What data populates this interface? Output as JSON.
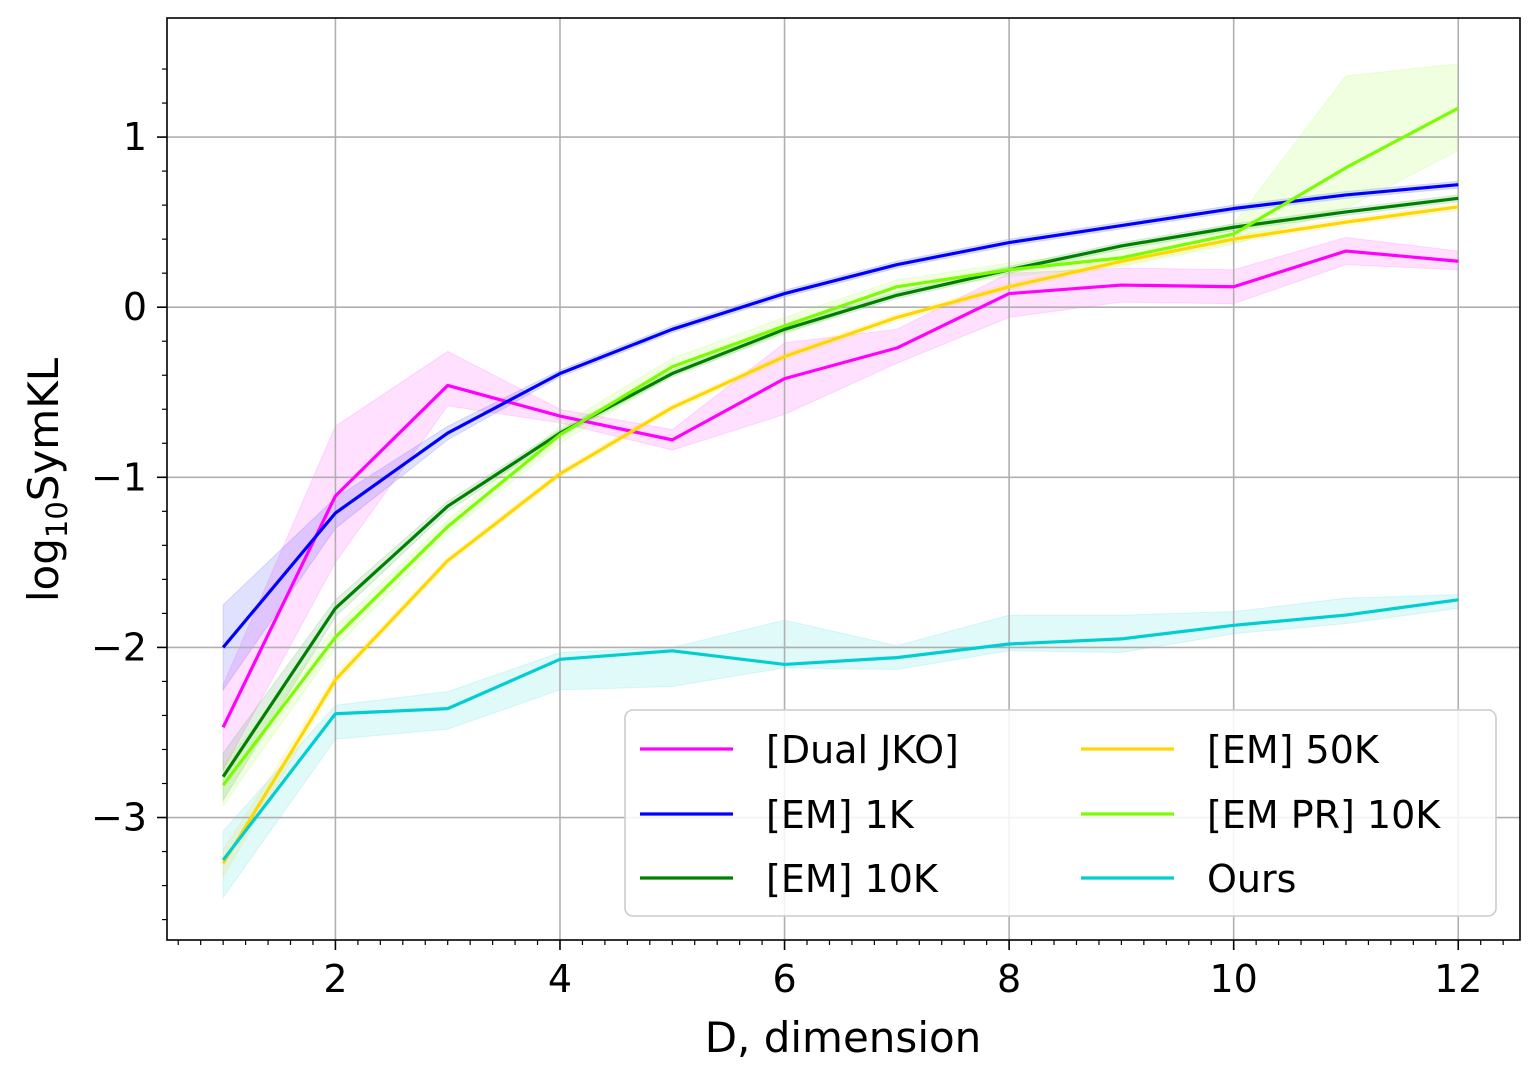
{
  "chart_data": {
    "type": "line",
    "title": "",
    "xlabel": "D, dimension",
    "ylabel_main": "log",
    "ylabel_sub": "10",
    "ylabel_rest": "SymKL",
    "xlim": [
      0.5,
      12.55
    ],
    "ylim": [
      -3.72,
      1.7
    ],
    "xticks": [
      2,
      4,
      6,
      8,
      10,
      12
    ],
    "xtick_labels": [
      "2",
      "4",
      "6",
      "8",
      "10",
      "12"
    ],
    "yticks": [
      -3,
      -2,
      -1,
      0,
      1
    ],
    "ytick_labels": [
      "−3",
      "−2",
      "−1",
      "0",
      "1"
    ],
    "grid": true,
    "legend_position": "lower-right",
    "x": [
      1,
      2,
      3,
      4,
      5,
      6,
      7,
      8,
      9,
      10,
      11,
      12
    ],
    "series": [
      {
        "name": "[Dual JKO]",
        "color": "#ff00ff",
        "values": [
          -2.47,
          -1.11,
          -0.46,
          -0.64,
          -0.78,
          -0.42,
          -0.24,
          0.08,
          0.13,
          0.12,
          0.33,
          0.27
        ],
        "lower": [
          -2.72,
          -1.5,
          -0.58,
          -0.68,
          -0.84,
          -0.63,
          -0.33,
          -0.06,
          0.03,
          0.02,
          0.25,
          0.22
        ],
        "upper": [
          -2.22,
          -0.7,
          -0.26,
          -0.6,
          -0.72,
          -0.21,
          -0.13,
          0.2,
          0.23,
          0.22,
          0.41,
          0.33
        ]
      },
      {
        "name": "[EM] 1K",
        "color": "#0000ff",
        "values": [
          -2.0,
          -1.21,
          -0.74,
          -0.39,
          -0.13,
          0.08,
          0.25,
          0.38,
          0.48,
          0.58,
          0.66,
          0.72
        ],
        "lower": [
          -2.25,
          -1.3,
          -0.78,
          -0.41,
          -0.15,
          0.06,
          0.23,
          0.36,
          0.46,
          0.56,
          0.64,
          0.7
        ],
        "upper": [
          -1.75,
          -1.12,
          -0.7,
          -0.37,
          -0.11,
          0.1,
          0.27,
          0.4,
          0.5,
          0.6,
          0.68,
          0.74
        ]
      },
      {
        "name": "[EM] 10K",
        "color": "#008000",
        "values": [
          -2.76,
          -1.77,
          -1.17,
          -0.74,
          -0.39,
          -0.13,
          0.07,
          0.22,
          0.36,
          0.47,
          0.56,
          0.64
        ],
        "lower": [
          -2.9,
          -1.82,
          -1.2,
          -0.76,
          -0.41,
          -0.15,
          0.05,
          0.2,
          0.34,
          0.45,
          0.54,
          0.62
        ],
        "upper": [
          -2.62,
          -1.72,
          -1.14,
          -0.72,
          -0.37,
          -0.11,
          0.09,
          0.24,
          0.38,
          0.49,
          0.58,
          0.66
        ]
      },
      {
        "name": "[EM] 50K",
        "color": "#ffd700",
        "values": [
          -3.27,
          -2.19,
          -1.49,
          -0.98,
          -0.59,
          -0.29,
          -0.06,
          0.12,
          0.27,
          0.4,
          0.5,
          0.59
        ],
        "lower": [
          -3.35,
          -2.22,
          -1.51,
          -1.0,
          -0.61,
          -0.31,
          -0.08,
          0.1,
          0.25,
          0.38,
          0.48,
          0.57
        ],
        "upper": [
          -3.19,
          -2.16,
          -1.47,
          -0.96,
          -0.57,
          -0.27,
          -0.04,
          0.14,
          0.29,
          0.42,
          0.52,
          0.61
        ]
      },
      {
        "name": "[EM PR] 10K",
        "color": "#7cfc00",
        "values": [
          -2.81,
          -1.94,
          -1.29,
          -0.75,
          -0.35,
          -0.11,
          0.12,
          0.22,
          0.29,
          0.43,
          0.82,
          1.17
        ],
        "lower": [
          -2.93,
          -2.0,
          -1.33,
          -0.8,
          -0.4,
          -0.16,
          0.08,
          0.18,
          0.24,
          0.37,
          0.58,
          0.92
        ],
        "upper": [
          -2.69,
          -1.88,
          -1.25,
          -0.7,
          -0.3,
          -0.06,
          0.16,
          0.26,
          0.34,
          0.49,
          1.36,
          1.43
        ]
      },
      {
        "name": "Ours",
        "color": "#00ced1",
        "values": [
          -3.25,
          -2.39,
          -2.36,
          -2.07,
          -2.02,
          -2.1,
          -2.06,
          -1.98,
          -1.95,
          -1.87,
          -1.81,
          -1.72
        ],
        "lower": [
          -3.47,
          -2.54,
          -2.48,
          -2.25,
          -2.23,
          -2.12,
          -2.13,
          -2.02,
          -2.03,
          -1.92,
          -1.86,
          -1.77
        ],
        "upper": [
          -3.08,
          -2.34,
          -2.26,
          -2.03,
          -2.0,
          -1.84,
          -1.99,
          -1.81,
          -1.81,
          -1.79,
          -1.71,
          -1.69
        ]
      }
    ]
  }
}
